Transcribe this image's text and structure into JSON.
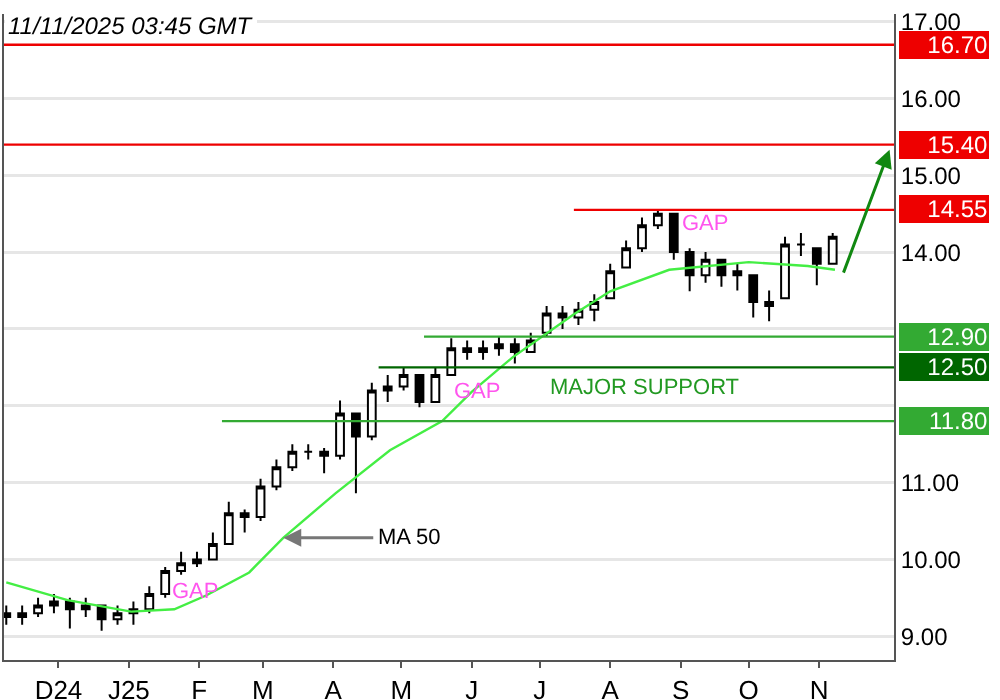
{
  "chart_data": {
    "type": "candlestick",
    "xlim": [
      "2024-11-07",
      "2025-12-04"
    ],
    "ylim": [
      8.69,
      17.1
    ],
    "xticks": [
      {
        "value": "2024-12-01",
        "label": "D24"
      },
      {
        "value": "2025-01-01",
        "label": "J25"
      },
      {
        "value": "2025-02-01",
        "label": "F"
      },
      {
        "value": "2025-03-01",
        "label": "M"
      },
      {
        "value": "2025-04-01",
        "label": "A"
      },
      {
        "value": "2025-05-01",
        "label": "M"
      },
      {
        "value": "2025-06-01",
        "label": "J"
      },
      {
        "value": "2025-07-01",
        "label": "J"
      },
      {
        "value": "2025-08-01",
        "label": "A"
      },
      {
        "value": "2025-09-01",
        "label": "S"
      },
      {
        "value": "2025-10-01",
        "label": "O"
      },
      {
        "value": "2025-11-01",
        "label": "N"
      }
    ],
    "yticks": [
      {
        "value": 9,
        "label": "9.00"
      },
      {
        "value": 10,
        "label": "10.00"
      },
      {
        "value": 11,
        "label": "11.00"
      },
      {
        "value": 12,
        "label": null
      },
      {
        "value": 13,
        "label": null
      },
      {
        "value": 14,
        "label": "14.00"
      },
      {
        "value": 15,
        "label": "15.00"
      },
      {
        "value": 16,
        "label": "16.00"
      },
      {
        "value": 17,
        "label": "17.00"
      }
    ],
    "grid": "y",
    "series": [
      {
        "color": "#000000",
        "x": [
          "2024-11-08",
          "2024-11-15",
          "2024-11-22",
          "2024-11-29",
          "2024-12-06",
          "2024-12-13",
          "2024-12-20",
          "2024-12-27",
          "2025-01-03",
          "2025-01-10",
          "2025-01-17",
          "2025-01-24",
          "2025-01-31",
          "2025-02-07",
          "2025-02-14",
          "2025-02-21",
          "2025-02-28",
          "2025-03-07",
          "2025-03-14",
          "2025-03-21",
          "2025-03-28",
          "2025-04-04",
          "2025-04-11",
          "2025-04-18",
          "2025-04-25",
          "2025-05-02",
          "2025-05-09",
          "2025-05-16",
          "2025-05-23",
          "2025-05-30",
          "2025-06-06",
          "2025-06-13",
          "2025-06-20",
          "2025-06-27",
          "2025-07-04",
          "2025-07-11",
          "2025-07-18",
          "2025-07-25",
          "2025-08-01",
          "2025-08-08",
          "2025-08-15",
          "2025-08-22",
          "2025-08-29",
          "2025-09-05",
          "2025-09-12",
          "2025-09-19",
          "2025-09-26",
          "2025-10-03",
          "2025-10-10",
          "2025-10-17",
          "2025-10-24",
          "2025-10-31",
          "2025-11-07"
        ],
        "ohlc": [
          [
            9.3,
            9.4,
            9.15,
            9.25
          ],
          [
            9.25,
            9.4,
            9.15,
            9.3
          ],
          [
            9.3,
            9.5,
            9.25,
            9.4
          ],
          [
            9.4,
            9.55,
            9.3,
            9.45
          ],
          [
            9.45,
            9.5,
            9.1,
            9.35
          ],
          [
            9.35,
            9.5,
            9.25,
            9.4
          ],
          [
            9.4,
            9.4,
            9.07,
            9.22
          ],
          [
            9.22,
            9.4,
            9.15,
            9.3
          ],
          [
            9.3,
            9.45,
            9.15,
            9.35
          ],
          [
            9.35,
            9.65,
            9.3,
            9.55
          ],
          [
            9.55,
            9.9,
            9.5,
            9.85
          ],
          [
            9.85,
            10.1,
            9.8,
            9.95
          ],
          [
            9.95,
            10.1,
            9.9,
            10
          ],
          [
            10,
            10.35,
            10,
            10.2
          ],
          [
            10.2,
            10.75,
            10.2,
            10.6
          ],
          [
            10.6,
            10.65,
            10.35,
            10.55
          ],
          [
            10.55,
            11.05,
            10.5,
            10.95
          ],
          [
            10.95,
            11.3,
            10.9,
            11.2
          ],
          [
            11.2,
            11.5,
            11.15,
            11.4
          ],
          [
            11.4,
            11.5,
            11.3,
            11.4
          ],
          [
            11.4,
            11.45,
            11.12,
            11.35
          ],
          [
            11.35,
            12.07,
            11.3,
            11.9
          ],
          [
            11.9,
            11.9,
            10.86,
            11.6
          ],
          [
            11.6,
            12.3,
            11.55,
            12.2
          ],
          [
            12.2,
            12.4,
            12.05,
            12.25
          ],
          [
            12.25,
            12.5,
            12.2,
            12.4
          ],
          [
            12.4,
            12.4,
            11.98,
            12.05
          ],
          [
            12.05,
            12.5,
            12.05,
            12.4
          ],
          [
            12.4,
            12.88,
            12.4,
            12.75
          ],
          [
            12.75,
            12.85,
            12.6,
            12.7
          ],
          [
            12.7,
            12.85,
            12.6,
            12.75
          ],
          [
            12.75,
            12.9,
            12.65,
            12.8
          ],
          [
            12.8,
            12.88,
            12.55,
            12.7
          ],
          [
            12.7,
            12.95,
            12.7,
            12.85
          ],
          [
            12.95,
            13.3,
            12.9,
            13.2
          ],
          [
            13.2,
            13.3,
            13,
            13.15
          ],
          [
            13.15,
            13.35,
            13.05,
            13.25
          ],
          [
            13.25,
            13.45,
            13.1,
            13.35
          ],
          [
            13.4,
            13.85,
            13.4,
            13.75
          ],
          [
            13.8,
            14.15,
            13.8,
            14.05
          ],
          [
            14.05,
            14.45,
            14,
            14.35
          ],
          [
            14.35,
            14.55,
            14.3,
            14.5
          ],
          [
            14.5,
            14.5,
            13.9,
            14
          ],
          [
            14,
            14.05,
            13.49,
            13.7
          ],
          [
            13.7,
            14,
            13.6,
            13.9
          ],
          [
            13.9,
            13.9,
            13.55,
            13.7
          ],
          [
            13.7,
            13.85,
            13.5,
            13.75
          ],
          [
            13.7,
            13.7,
            13.15,
            13.35
          ],
          [
            13.35,
            13.5,
            13.1,
            13.3
          ],
          [
            13.4,
            14.2,
            13.4,
            14.1
          ],
          [
            14.1,
            14.25,
            13.95,
            14.1
          ],
          [
            14.05,
            14.05,
            13.57,
            13.85
          ],
          [
            13.85,
            14.25,
            13.85,
            14.2
          ]
        ]
      },
      {
        "type": "line",
        "color": "#44ee44",
        "x": [
          "2024-11-08",
          "2024-12-05",
          "2025-01-02",
          "2025-01-21",
          "2025-02-04",
          "2025-02-23",
          "2025-03-10",
          "2025-04-02",
          "2025-04-26",
          "2025-05-19",
          "2025-06-01",
          "2025-06-19",
          "2025-07-16",
          "2025-08-01",
          "2025-08-27",
          "2025-10-01",
          "2025-10-27",
          "2025-11-08"
        ],
        "values": [
          9.7,
          9.47,
          9.32,
          9.35,
          9.53,
          9.83,
          10.28,
          10.86,
          11.42,
          11.8,
          12.18,
          12.63,
          13.19,
          13.49,
          13.77,
          13.87,
          13.82,
          13.77
        ]
      },
      {
        "type": "line",
        "color": "#ee0000",
        "x": [
          "2024-11-07",
          "2025-12-04"
        ],
        "values": [
          16.7,
          16.7
        ],
        "value_labels": [
          null,
          "16.70"
        ]
      },
      {
        "type": "line",
        "color": "#ee0000",
        "x": [
          "2024-11-07",
          "2025-12-04"
        ],
        "values": [
          15.4,
          15.4
        ],
        "value_labels": [
          null,
          "15.40"
        ]
      },
      {
        "type": "line",
        "color": "#ee0000",
        "x": [
          "2025-07-16",
          "2025-12-04"
        ],
        "values": [
          14.55,
          14.55
        ],
        "value_labels": [
          null,
          "14.55"
        ]
      },
      {
        "type": "line",
        "color": "#33aa33",
        "x": [
          "2025-05-11",
          "2025-12-04"
        ],
        "values": [
          12.9,
          12.9
        ],
        "value_labels": [
          null,
          "12.90"
        ]
      },
      {
        "type": "line",
        "color": "#006600",
        "x": [
          "2025-04-21",
          "2025-12-04"
        ],
        "values": [
          12.5,
          12.5
        ],
        "value_labels": [
          null,
          "12.50"
        ]
      },
      {
        "type": "line",
        "color": "#33aa33",
        "x": [
          "2025-02-11",
          "2025-12-04"
        ],
        "values": [
          11.8,
          11.8
        ],
        "value_labels": [
          null,
          "11.80"
        ]
      }
    ],
    "annotations": [
      "11/11/2025 03:45 GMT",
      "GAP",
      "GAP",
      "GAP",
      "MAJOR SUPPORT",
      {
        "text": "MA 50",
        "x": "2025-03-10",
        "y": 10.28
      }
    ]
  }
}
